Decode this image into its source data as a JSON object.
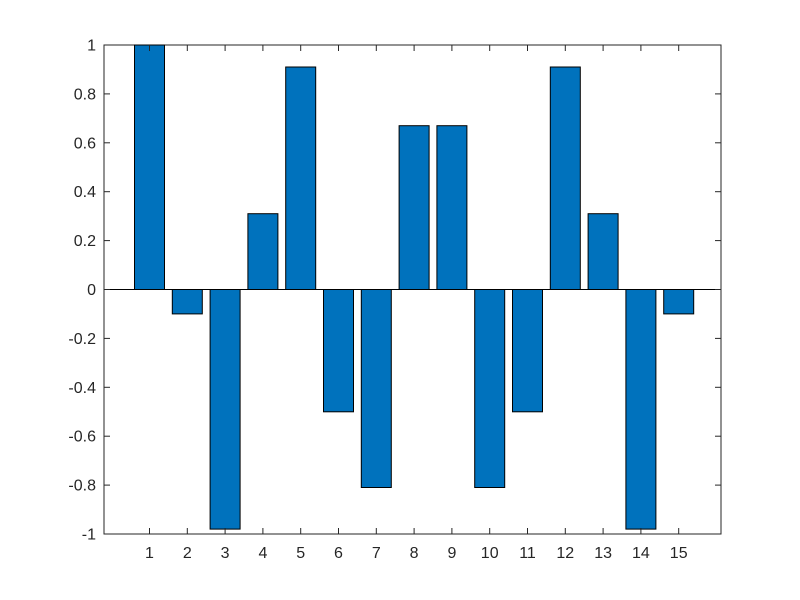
{
  "chart_data": {
    "type": "bar",
    "categories": [
      "1",
      "2",
      "3",
      "4",
      "5",
      "6",
      "7",
      "8",
      "9",
      "10",
      "11",
      "12",
      "13",
      "14",
      "15"
    ],
    "values": [
      1.0,
      -0.1,
      -0.98,
      0.31,
      0.91,
      -0.5,
      -0.81,
      0.67,
      0.67,
      -0.81,
      -0.5,
      0.91,
      0.31,
      -0.98,
      -0.1
    ],
    "title": "",
    "xlabel": "",
    "ylabel": "",
    "ylim": [
      -1,
      1
    ],
    "yticks": [
      "-1",
      "-0.8",
      "-0.6",
      "-0.4",
      "-0.2",
      "0",
      "0.2",
      "0.4",
      "0.6",
      "0.8",
      "1"
    ],
    "grid": false,
    "bar_color": "#0072BD"
  }
}
